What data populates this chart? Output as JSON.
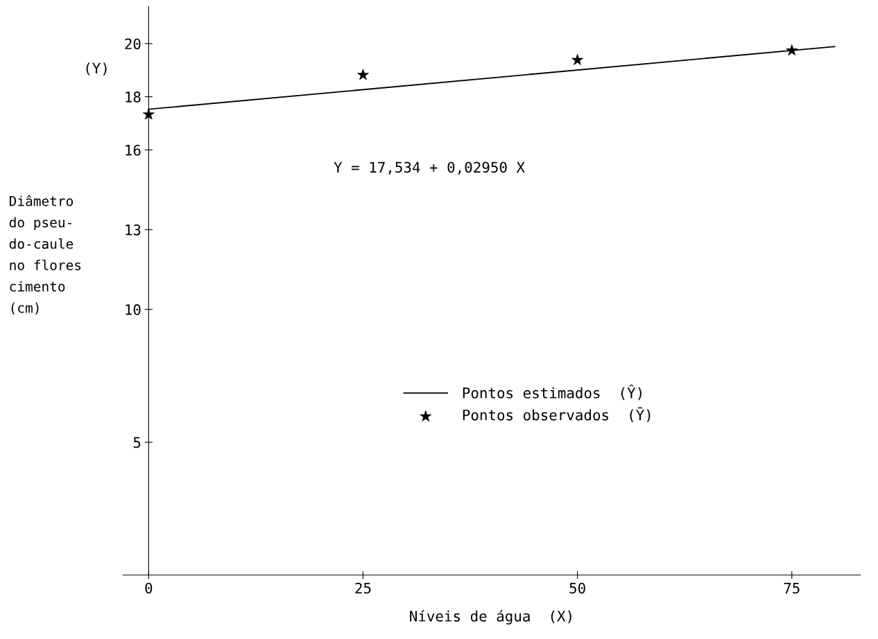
{
  "chart_data": {
    "type": "scatter",
    "xlabel": "Níveis de água  (X)",
    "ylabel": "Diâmetro\ndo pseu-\ndo-caule\nno flores\ncimento\n(cm)",
    "annotations": [
      "(Y)",
      "Y = 17,534 + 0,02950 X"
    ],
    "series": [
      {
        "name": "Pontos estimados  (Ŷ)",
        "type": "line",
        "color": "#000000",
        "x": [
          0,
          80
        ],
        "values": [
          17.53,
          19.89
        ],
        "marker": "none",
        "line_style": "solid"
      },
      {
        "name": "Pontos observados  (Ȳ)",
        "color": "#000000",
        "x": [
          0,
          25,
          50,
          75
        ],
        "values": [
          17.33,
          18.82,
          19.38,
          19.74
        ],
        "marker": "star"
      }
    ],
    "xlim": [
      -3,
      83
    ],
    "ylim": [
      0,
      21.4
    ],
    "xticks": [
      0,
      25,
      50,
      75
    ],
    "yticks": [
      5,
      10,
      13,
      16,
      18,
      20
    ],
    "grid": false,
    "legend": "center"
  }
}
